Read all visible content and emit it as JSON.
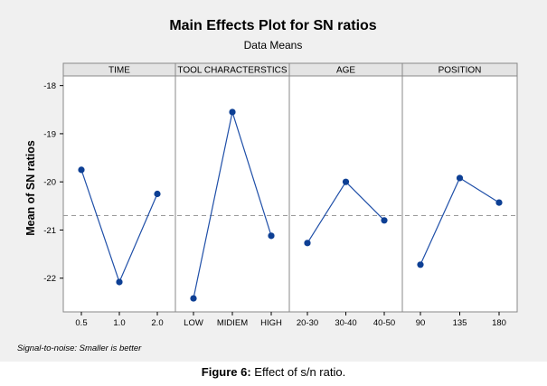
{
  "chart_data": {
    "type": "line",
    "title": "Main Effects Plot for SN ratios",
    "subtitle": "Data Means",
    "ylabel": "Mean of SN ratios",
    "ylim": [
      -22.7,
      -17.8
    ],
    "yticks": [
      -18,
      -19,
      -20,
      -21,
      -22
    ],
    "reference_line": -20.7,
    "footnote": "Signal-to-noise: Smaller is better",
    "panels": [
      {
        "name": "TIME",
        "categories": [
          "0.5",
          "1.0",
          "2.0"
        ],
        "values": [
          -19.75,
          -22.08,
          -20.25
        ]
      },
      {
        "name": "TOOL CHARACTERSTICS",
        "categories": [
          "LOW",
          "MIDIEM",
          "HIGH"
        ],
        "values": [
          -22.42,
          -18.55,
          -21.12
        ]
      },
      {
        "name": "AGE",
        "categories": [
          "20-30",
          "30-40",
          "40-50"
        ],
        "values": [
          -21.27,
          -20.0,
          -20.8
        ]
      },
      {
        "name": "POSITION",
        "categories": [
          "90",
          "135",
          "180"
        ],
        "values": [
          -21.72,
          -19.92,
          -20.43
        ]
      }
    ],
    "colors": {
      "line": "#1f4fa8",
      "marker": "#0d3f94",
      "reference": "#9a9a9a",
      "grid": "#888888",
      "background": "#ffffff",
      "header": "#e4e4e4"
    }
  },
  "caption": {
    "label": "Figure 6:",
    "text": " Effect of s/n ratio."
  }
}
